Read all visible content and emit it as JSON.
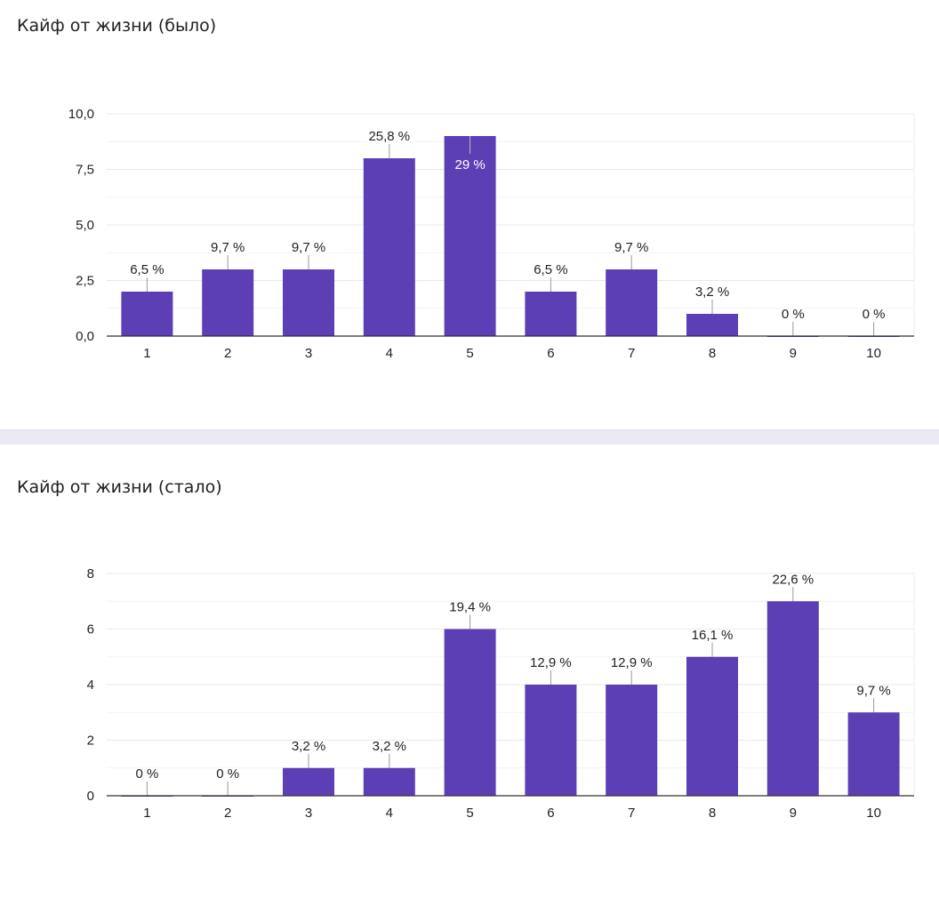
{
  "colors": {
    "bar": "#5c3fb5",
    "grid": "#e8e8e8",
    "separator": "#ece9f7"
  },
  "chart_data": [
    {
      "type": "bar",
      "title": "Кайф от жизни (было)",
      "categories": [
        "1",
        "2",
        "3",
        "4",
        "5",
        "6",
        "7",
        "8",
        "9",
        "10"
      ],
      "values": [
        2,
        3,
        3,
        8,
        9,
        2,
        3,
        1,
        0,
        0
      ],
      "data_labels": [
        "6,5 %",
        "9,7 %",
        "9,7 %",
        "25,8 %",
        "29 %",
        "6,5 %",
        "9,7 %",
        "3,2 %",
        "0 %",
        "0 %"
      ],
      "ylim": [
        0,
        10
      ],
      "yticks": [
        0,
        2.5,
        5,
        7.5,
        10
      ],
      "ytick_labels": [
        "0,0",
        "2,5",
        "5,0",
        "7,5",
        "10,0"
      ],
      "xlabel": "",
      "ylabel": "",
      "grid": true
    },
    {
      "type": "bar",
      "title": "Кайф от жизни (стало)",
      "categories": [
        "1",
        "2",
        "3",
        "4",
        "5",
        "6",
        "7",
        "8",
        "9",
        "10"
      ],
      "values": [
        0,
        0,
        1,
        1,
        6,
        4,
        4,
        5,
        7,
        3
      ],
      "data_labels": [
        "0 %",
        "0 %",
        "3,2 %",
        "3,2 %",
        "19,4 %",
        "12,9 %",
        "12,9 %",
        "16,1 %",
        "22,6 %",
        "9,7 %"
      ],
      "ylim": [
        0,
        8
      ],
      "yticks": [
        0,
        2,
        4,
        6,
        8
      ],
      "ytick_labels": [
        "0",
        "2",
        "4",
        "6",
        "8"
      ],
      "xlabel": "",
      "ylabel": "",
      "grid": true
    }
  ]
}
